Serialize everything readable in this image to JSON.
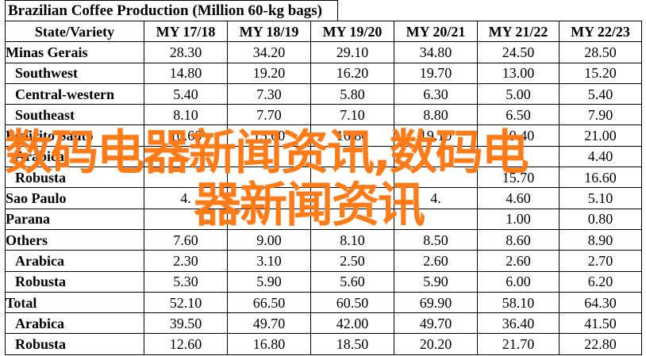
{
  "title": "Brazilian Coffee Production (Million 60-kg bags)",
  "headers": [
    "State/Variety",
    "MY 17/18",
    "MY 18/19",
    "MY 19/20",
    "MY 20/21",
    "MY 21/22",
    "MY 22/23"
  ],
  "rows": [
    {
      "label": "Minas Gerais",
      "sub": false,
      "values": [
        "28.30",
        "34.20",
        "29.10",
        "34.80",
        "24.50",
        "28.50"
      ]
    },
    {
      "label": "Southwest",
      "sub": true,
      "values": [
        "14.80",
        "19.20",
        "16.20",
        "19.70",
        "13.00",
        "15.20"
      ]
    },
    {
      "label": "Central-western",
      "sub": true,
      "values": [
        "5.40",
        "7.30",
        "5.80",
        "6.30",
        "5.00",
        "5.40"
      ]
    },
    {
      "label": "Southeast",
      "sub": true,
      "values": [
        "8.10",
        "7.70",
        "7.10",
        "8.80",
        "6.50",
        "7.90"
      ]
    },
    {
      "label": "Espirito Santo",
      "sub": false,
      "values": [
        "10.60",
        "15.60",
        "16.80",
        "19.10",
        "19.40",
        "21.00"
      ]
    },
    {
      "label": "Arabica",
      "sub": true,
      "values": [
        "",
        "",
        "",
        "",
        "",
        "4.40"
      ]
    },
    {
      "label": "Robusta",
      "sub": true,
      "values": [
        "",
        "",
        "",
        "",
        "15.70",
        "16.60"
      ]
    },
    {
      "label": "Sao Paulo",
      "sub": false,
      "values": [
        "4.",
        "",
        "",
        "4.",
        "4.60",
        "5.10"
      ]
    },
    {
      "label": "Parana",
      "sub": false,
      "values": [
        "",
        "",
        "",
        "",
        "1.00",
        "0.80"
      ]
    },
    {
      "label": "Others",
      "sub": false,
      "values": [
        "7.60",
        "9.00",
        "8.10",
        "8.50",
        "8.60",
        "8.90"
      ]
    },
    {
      "label": "Arabica",
      "sub": true,
      "values": [
        "2.30",
        "3.10",
        "2.50",
        "2.60",
        "2.60",
        "2.70"
      ]
    },
    {
      "label": "Robusta",
      "sub": true,
      "values": [
        "5.30",
        "5.90",
        "5.60",
        "5.90",
        "6.00",
        "6.20"
      ]
    },
    {
      "label": "Total",
      "sub": false,
      "values": [
        "52.10",
        "66.50",
        "60.50",
        "69.90",
        "58.10",
        "64.30"
      ]
    },
    {
      "label": "Arabica",
      "sub": true,
      "values": [
        "39.50",
        "49.70",
        "42.00",
        "49.70",
        "36.40",
        "41.50"
      ]
    },
    {
      "label": "Robusta",
      "sub": true,
      "values": [
        "12.60",
        "16.80",
        "18.50",
        "20.20",
        "21.70",
        "22.80"
      ]
    }
  ],
  "watermark": {
    "line1": "数码电器新闻资讯,数码电",
    "line2": "器新闻资讯",
    "color": "#ff7b17"
  },
  "colors": {
    "border": "#000000",
    "background": "#ffffff"
  }
}
